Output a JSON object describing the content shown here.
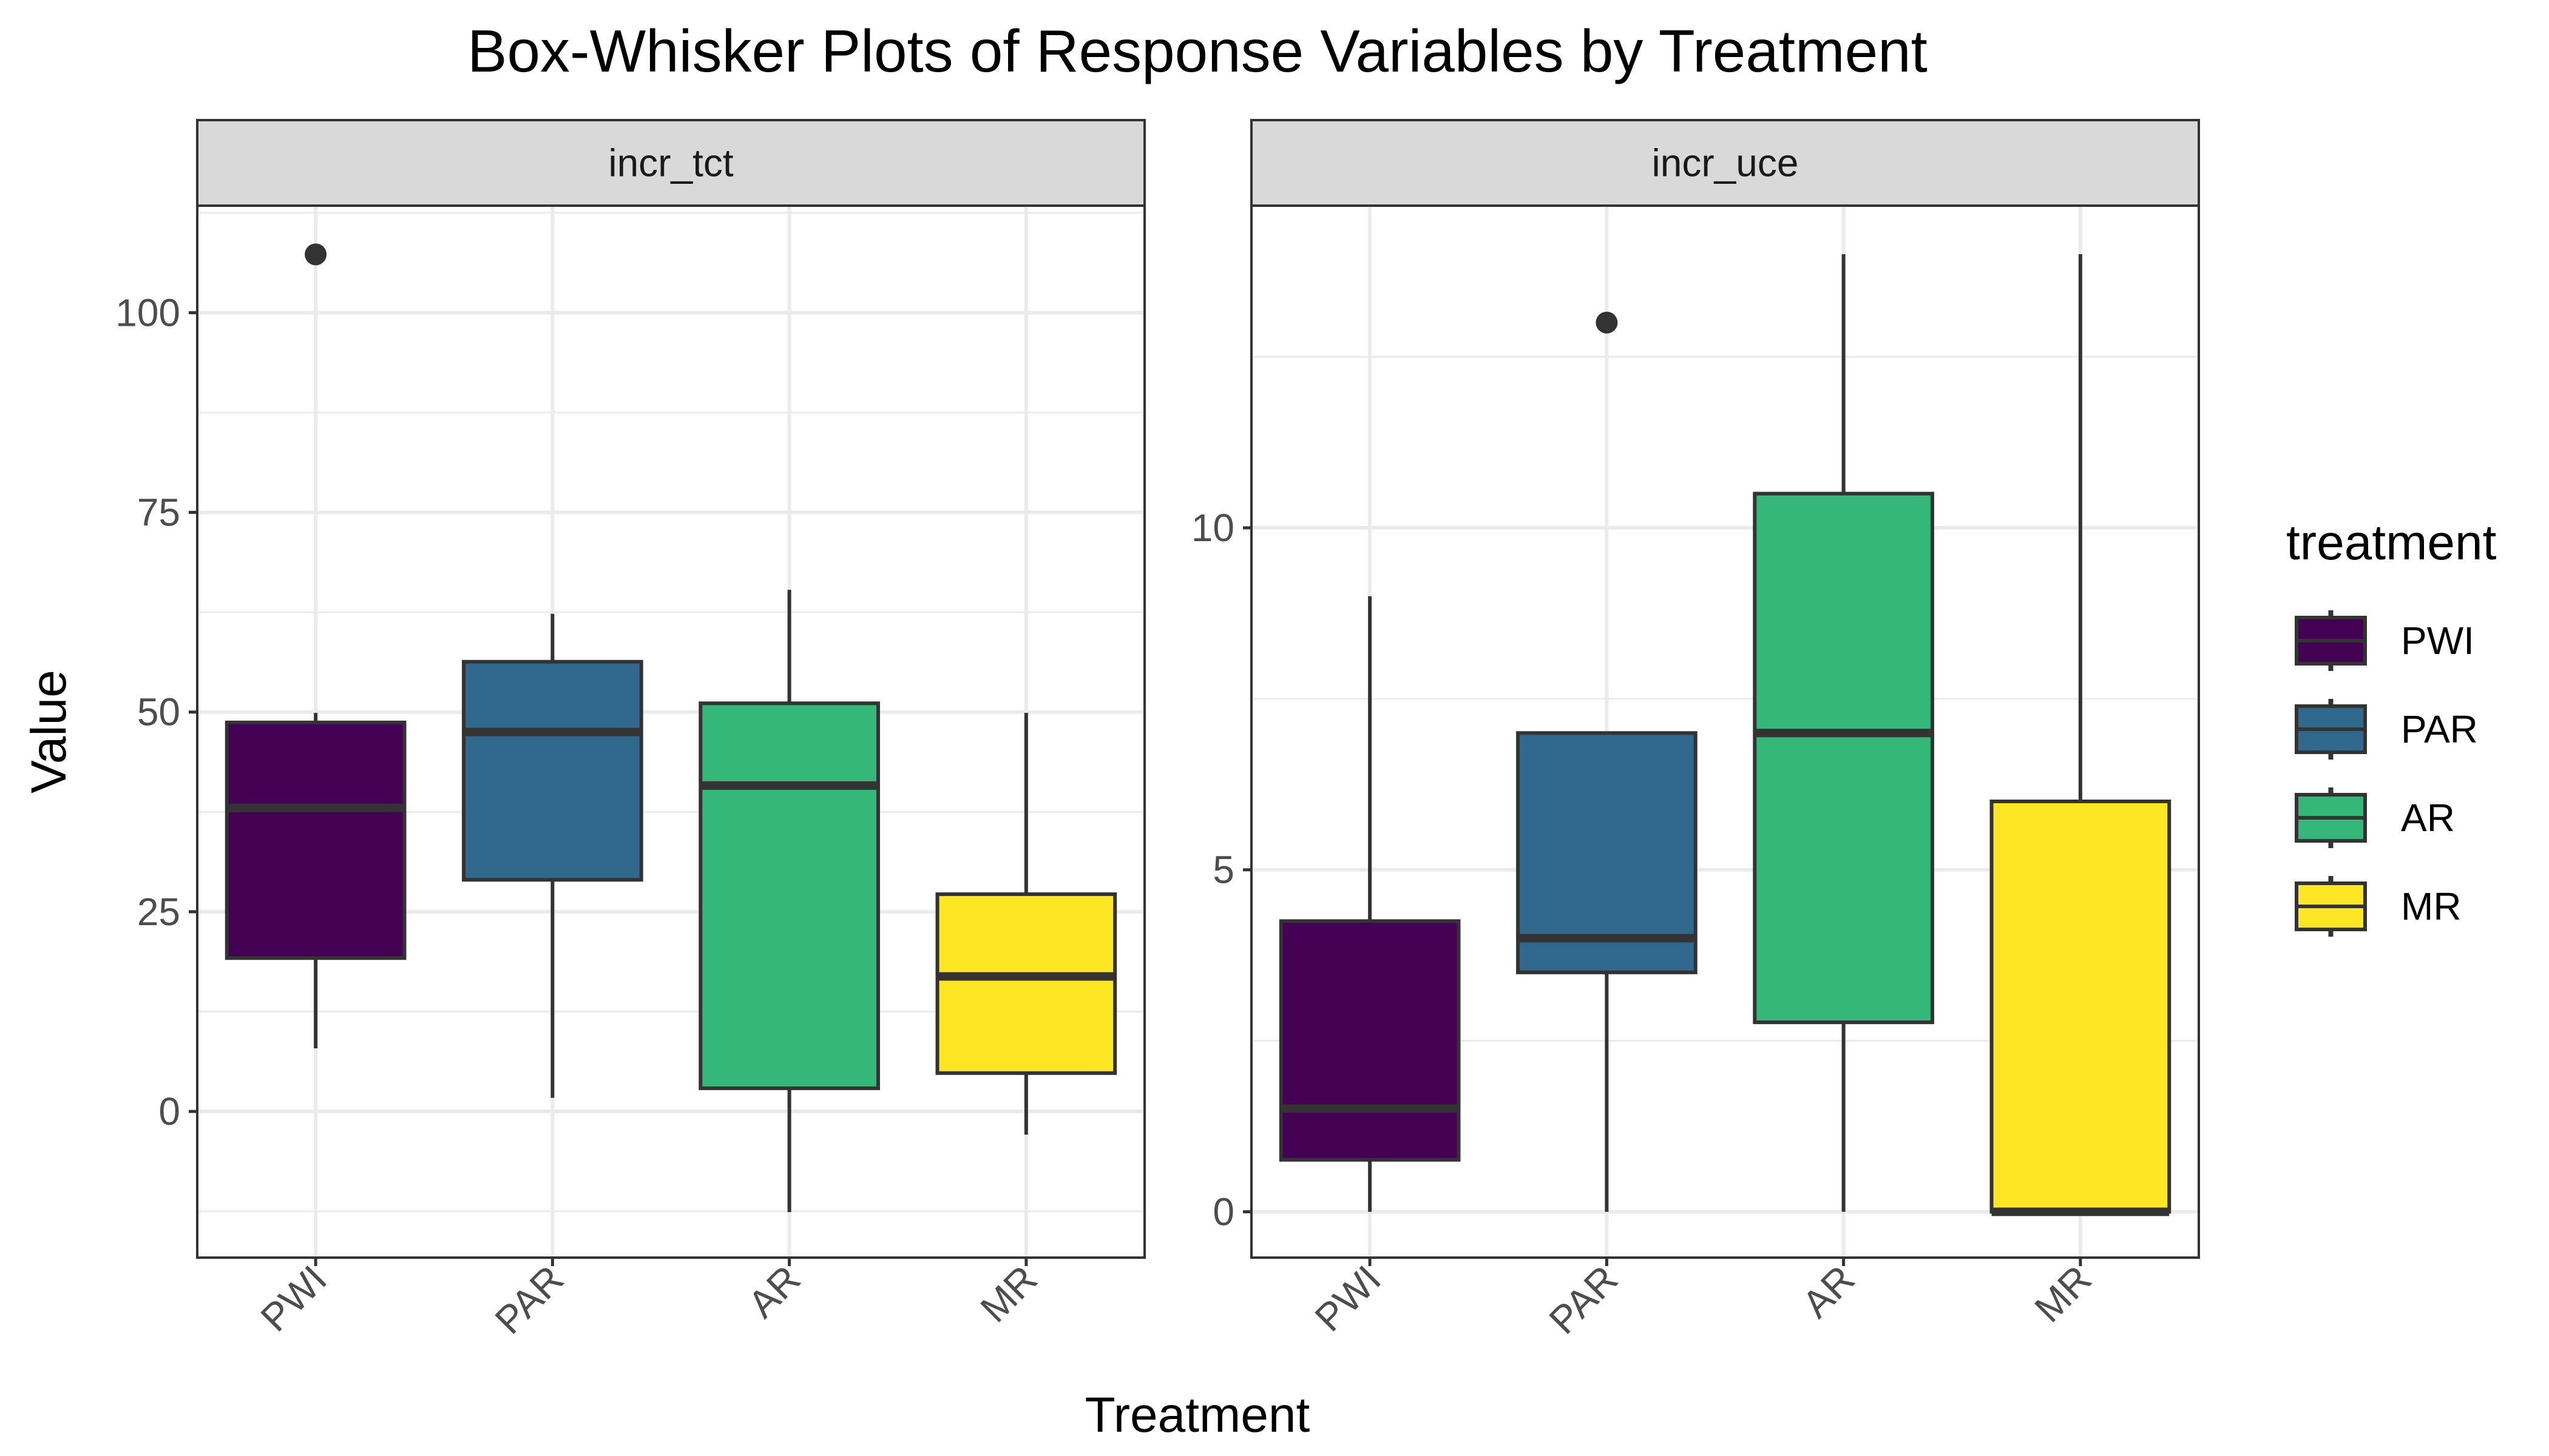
{
  "chart_data": {
    "type": "boxplot",
    "title": "Box-Whisker Plots of Response Variables by Treatment",
    "xlabel": "Treatment",
    "ylabel": "Value",
    "categories": [
      "PWI",
      "PAR",
      "AR",
      "MR"
    ],
    "legend": {
      "title": "treatment",
      "placement": "right",
      "entries": [
        {
          "label": "PWI",
          "color": "#440154"
        },
        {
          "label": "PAR",
          "color": "#31688E"
        },
        {
          "label": "AR",
          "color": "#35B779"
        },
        {
          "label": "MR",
          "color": "#FDE725"
        }
      ]
    },
    "grid": true,
    "facets": [
      {
        "label": "incr_tct",
        "ylim": [
          -18.3,
          113.4
        ],
        "yticks": [
          0,
          25,
          50,
          75,
          100
        ],
        "ytick_labels": [
          "0",
          "25",
          "50",
          "75",
          "100"
        ],
        "minor_yticks": [
          -12.5,
          12.5,
          37.5,
          62.5,
          87.5,
          112.5
        ],
        "boxes": [
          {
            "category": "PWI",
            "whisker_low": 7.9,
            "q1": 19.2,
            "median": 38.0,
            "q3": 48.7,
            "whisker_high": 49.9,
            "outliers": [
              107.3
            ]
          },
          {
            "category": "PAR",
            "whisker_low": 1.7,
            "q1": 29.0,
            "median": 47.5,
            "q3": 56.3,
            "whisker_high": 62.3,
            "outliers": []
          },
          {
            "category": "AR",
            "whisker_low": -12.6,
            "q1": 2.9,
            "median": 40.8,
            "q3": 51.1,
            "whisker_high": 65.3,
            "outliers": []
          },
          {
            "category": "MR",
            "whisker_low": -2.9,
            "q1": 4.8,
            "median": 16.9,
            "q3": 27.2,
            "whisker_high": 49.9,
            "outliers": []
          }
        ]
      },
      {
        "label": "incr_uce",
        "ylim": [
          -0.67,
          14.71
        ],
        "yticks": [
          0,
          5,
          10
        ],
        "ytick_labels": [
          "0",
          "5",
          "10"
        ],
        "minor_yticks": [
          2.5,
          7.5,
          12.5
        ],
        "boxes": [
          {
            "category": "PWI",
            "whisker_low": 0,
            "q1": 0.76,
            "median": 1.51,
            "q3": 4.25,
            "whisker_high": 9.0,
            "outliers": []
          },
          {
            "category": "PAR",
            "whisker_low": 0,
            "q1": 3.5,
            "median": 4.0,
            "q3": 7.0,
            "whisker_high": 7.0,
            "outliers": [
              13.0
            ]
          },
          {
            "category": "AR",
            "whisker_low": 0,
            "q1": 2.77,
            "median": 7.0,
            "q3": 10.5,
            "whisker_high": 14.0,
            "outliers": []
          },
          {
            "category": "MR",
            "whisker_low": 0,
            "q1": 0,
            "median": 0,
            "q3": 6.0,
            "whisker_high": 14.0,
            "outliers": []
          }
        ]
      }
    ]
  },
  "colors": {
    "outline": "#333333",
    "grid": "#EBEBEB",
    "strip_fill": "#D9D9D9",
    "panel_border": "#333333"
  }
}
